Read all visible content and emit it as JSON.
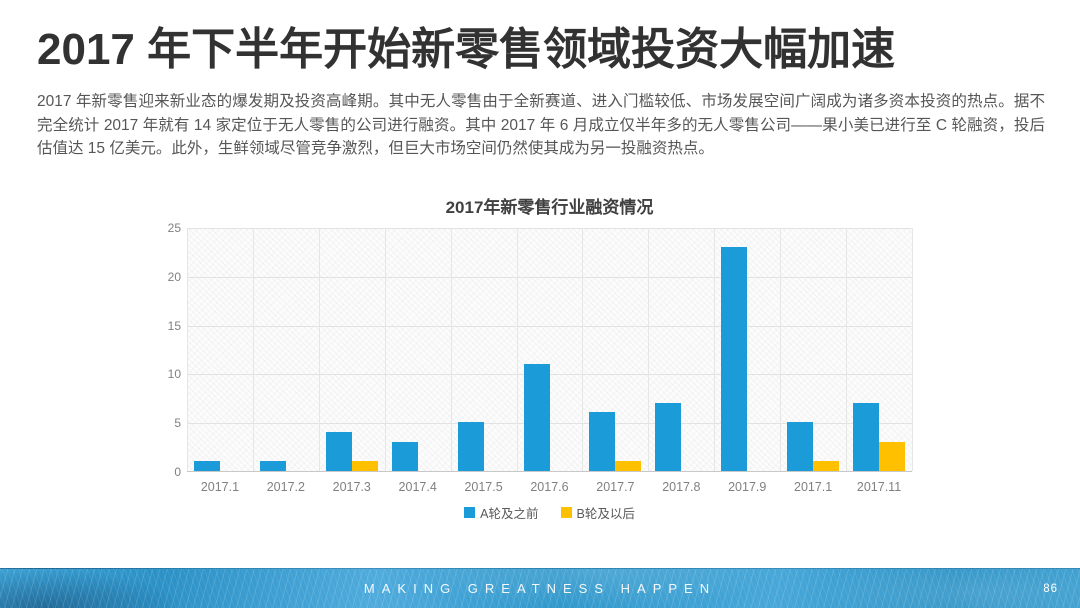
{
  "slide": {
    "title": "2017 年下半年开始新零售领域投资大幅加速",
    "body": "2017 年新零售迎来新业态的爆发期及投资高峰期。其中无人零售由于全新赛道、进入门槛较低、市场发展空间广阔成为诸多资本投资的热点。据不完全统计 2017 年就有 14 家定位于无人零售的公司进行融资。其中 2017 年 6 月成立仅半年多的无人零售公司——果小美已进行至 C 轮融资，投后估值达 15 亿美元。此外，生鲜领域尽管竞争激烈，但巨大市场空间仍然使其成为另一投融资热点。",
    "footer_text": "MAKING GREATNESS HAPPEN",
    "page_number": "86"
  },
  "colors": {
    "series_a_blue": "#1B9BD8",
    "series_b_yellow": "#FFC000",
    "footer_blue": "#2E96CF",
    "title_text": "#323232",
    "body_text": "#565656",
    "axis_text": "#808080",
    "gridline": "#E2E2E2"
  },
  "chart_data": {
    "type": "bar",
    "title": "2017年新零售行业融资情况",
    "categories": [
      "2017.1",
      "2017.2",
      "2017.3",
      "2017.4",
      "2017.5",
      "2017.6",
      "2017.7",
      "2017.8",
      "2017.9",
      "2017.1",
      "2017.11"
    ],
    "series": [
      {
        "name": "A轮及之前",
        "color": "#1B9BD8",
        "values": [
          1,
          1,
          4,
          3,
          5,
          11,
          6,
          7,
          23,
          5,
          7
        ]
      },
      {
        "name": "B轮及以后",
        "color": "#FFC000",
        "values": [
          0,
          0,
          1,
          0,
          0,
          0,
          1,
          0,
          0,
          1,
          3
        ]
      }
    ],
    "xlabel": "",
    "ylabel": "",
    "ylim": [
      0,
      25
    ],
    "yticks": [
      0,
      5,
      10,
      15,
      20,
      25
    ],
    "grid": true,
    "legend_position": "bottom"
  }
}
